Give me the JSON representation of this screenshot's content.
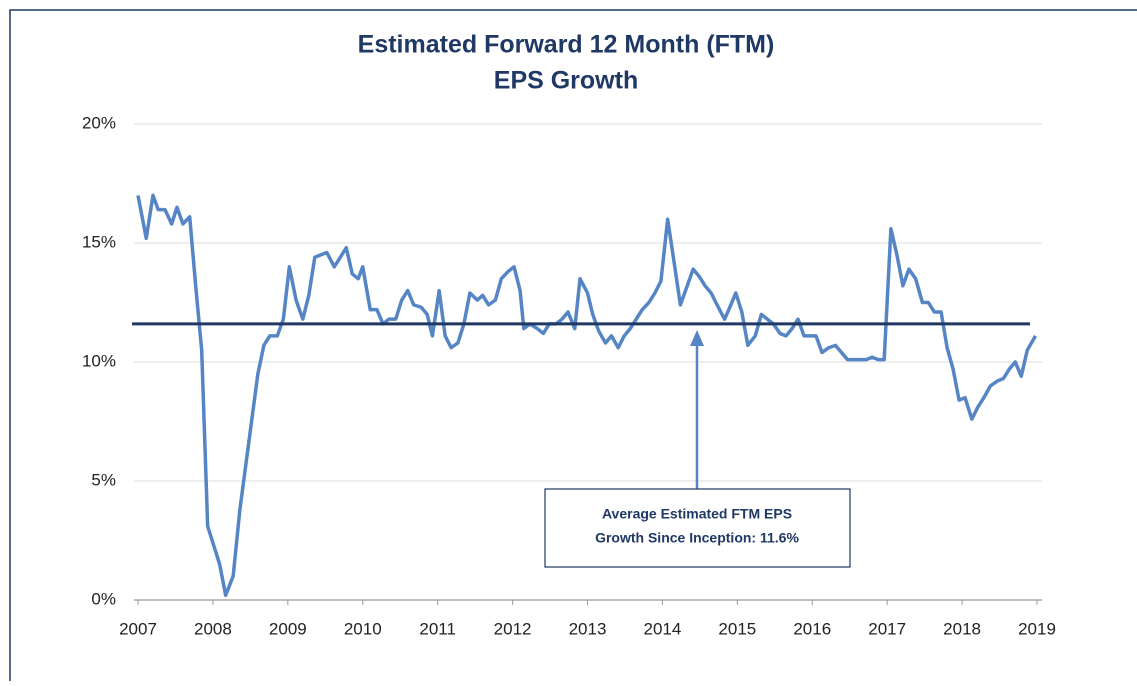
{
  "chart_data": {
    "type": "line",
    "title": [
      "Estimated Forward 12 Month (FTM)",
      "EPS Growth"
    ],
    "xlim": [
      2007,
      2019
    ],
    "xticks": [
      2007,
      2008,
      2009,
      2010,
      2011,
      2012,
      2013,
      2014,
      2015,
      2016,
      2017,
      2018,
      2019
    ],
    "ylim": [
      0,
      20
    ],
    "yticks": [
      {
        "value": 0,
        "label": "0%"
      },
      {
        "value": 5,
        "label": "5%"
      },
      {
        "value": 10,
        "label": "10%"
      },
      {
        "value": 15,
        "label": "15%"
      },
      {
        "value": 20,
        "label": "20%"
      }
    ],
    "grid": true,
    "x": [
      2007.0,
      2007.11,
      2007.2,
      2007.27,
      2007.36,
      2007.45,
      2007.52,
      2007.6,
      2007.69,
      2007.77,
      2007.85,
      2007.93,
      2008.01,
      2008.09,
      2008.17,
      2008.27,
      2008.36,
      2008.44,
      2008.52,
      2008.6,
      2008.68,
      2008.76,
      2008.86,
      2008.94,
      2009.02,
      2009.11,
      2009.2,
      2009.28,
      2009.36,
      2009.44,
      2009.52,
      2009.62,
      2009.7,
      2009.78,
      2009.86,
      2009.94,
      2010.0,
      2010.1,
      2010.19,
      2010.27,
      2010.35,
      2010.44,
      2010.52,
      2010.6,
      2010.68,
      2010.78,
      2010.86,
      2010.93,
      2011.02,
      2011.1,
      2011.18,
      2011.27,
      2011.35,
      2011.43,
      2011.53,
      2011.6,
      2011.68,
      2011.77,
      2011.85,
      2011.94,
      2012.02,
      2012.1,
      2012.15,
      2012.23,
      2012.33,
      2012.41,
      2012.49,
      2012.58,
      2012.66,
      2012.74,
      2012.83,
      2012.9,
      2013.0,
      2013.07,
      2013.15,
      2013.24,
      2013.32,
      2013.41,
      2013.49,
      2013.57,
      2013.65,
      2013.73,
      2013.82,
      2013.9,
      2013.98,
      2014.07,
      2014.16,
      2014.24,
      2014.32,
      2014.41,
      2014.49,
      2014.57,
      2014.65,
      2014.73,
      2014.83,
      2014.9,
      2014.98,
      2015.06,
      2015.14,
      2015.24,
      2015.32,
      2015.4,
      2015.48,
      2015.57,
      2015.65,
      2015.73,
      2015.81,
      2015.89,
      2015.97,
      2016.05,
      2016.13,
      2016.22,
      2016.31,
      2016.39,
      2016.47,
      2016.55,
      2016.64,
      2016.72,
      2016.8,
      2016.88,
      2016.96,
      2017.05,
      2017.13,
      2017.21,
      2017.29,
      2017.38,
      2017.47,
      2017.55,
      2017.63,
      2017.72,
      2017.8,
      2017.88,
      2017.96,
      2018.04,
      2018.13,
      2018.21,
      2018.29,
      2018.38,
      2018.47,
      2018.55,
      2018.63,
      2018.71,
      2018.79,
      2018.87,
      2018.98
    ],
    "series": [
      {
        "color": "#5585c5",
        "values": [
          17.0,
          15.2,
          17.0,
          16.4,
          16.4,
          15.8,
          16.5,
          15.8,
          16.1,
          13.2,
          10.5,
          3.1,
          2.3,
          1.5,
          0.2,
          1.0,
          3.8,
          5.7,
          7.6,
          9.5,
          10.7,
          11.1,
          11.1,
          11.8,
          14.0,
          12.6,
          11.8,
          12.8,
          14.4,
          14.5,
          14.6,
          14.0,
          14.4,
          14.8,
          13.7,
          13.5,
          14.0,
          12.2,
          12.2,
          11.6,
          11.8,
          11.8,
          12.6,
          13.0,
          12.4,
          12.3,
          12.0,
          11.1,
          13.0,
          11.1,
          10.6,
          10.8,
          11.6,
          12.9,
          12.6,
          12.8,
          12.4,
          12.6,
          13.5,
          13.8,
          14.0,
          13.0,
          11.4,
          11.6,
          11.4,
          11.2,
          11.6,
          11.6,
          11.8,
          12.1,
          11.4,
          13.5,
          12.9,
          12.0,
          11.3,
          10.8,
          11.1,
          10.6,
          11.1,
          11.4,
          11.8,
          12.2,
          12.5,
          12.9,
          13.4,
          16.0,
          14.1,
          12.4,
          13.1,
          13.9,
          13.6,
          13.2,
          12.9,
          12.4,
          11.8,
          12.3,
          12.9,
          12.1,
          10.7,
          11.1,
          12.0,
          11.8,
          11.6,
          11.2,
          11.1,
          11.4,
          11.8,
          11.1,
          11.1,
          11.1,
          10.4,
          10.6,
          10.7,
          10.4,
          10.1,
          10.1,
          10.1,
          10.1,
          10.2,
          10.1,
          10.1,
          15.6,
          14.5,
          13.2,
          13.9,
          13.5,
          12.5,
          12.5,
          12.1,
          12.1,
          10.6,
          9.7,
          8.4,
          8.5,
          7.6,
          8.1,
          8.5,
          9.0,
          9.2,
          9.3,
          9.7,
          10.0,
          9.4,
          10.5,
          11.1
        ]
      }
    ],
    "reference_line": {
      "value": 11.6,
      "color": "#1f3864"
    },
    "annotation": [
      "Average Estimated FTM EPS",
      "Growth Since Inception: 11.6%"
    ]
  }
}
